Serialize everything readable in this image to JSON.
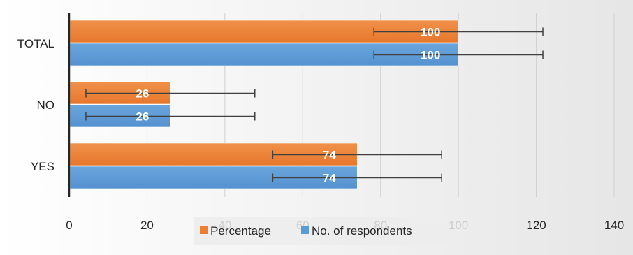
{
  "chart_data": {
    "type": "bar",
    "orientation": "horizontal",
    "categories": [
      "YES",
      "NO",
      "TOTAL"
    ],
    "series": [
      {
        "name": "No. of respondents",
        "values": [
          74,
          26,
          100
        ],
        "color": "#5b9bd5"
      },
      {
        "name": "Percentage",
        "values": [
          74,
          26,
          100
        ],
        "color": "#ed7d31"
      }
    ],
    "error_bars": {
      "plus_minus": 21.7
    },
    "xlim": [
      0,
      140
    ],
    "xticks": [
      0,
      20,
      40,
      60,
      80,
      100,
      120,
      140
    ],
    "grid": true,
    "legend_position": "bottom",
    "legend_order": [
      "Percentage",
      "No. of respondents"
    ],
    "title": "",
    "xlabel": "",
    "ylabel": ""
  },
  "colors": {
    "gridline": "#d0d0d0",
    "axis": "#262626",
    "errorbar": "#404040",
    "background_start": "#ffffff",
    "background_end": "#e8e8e8"
  }
}
